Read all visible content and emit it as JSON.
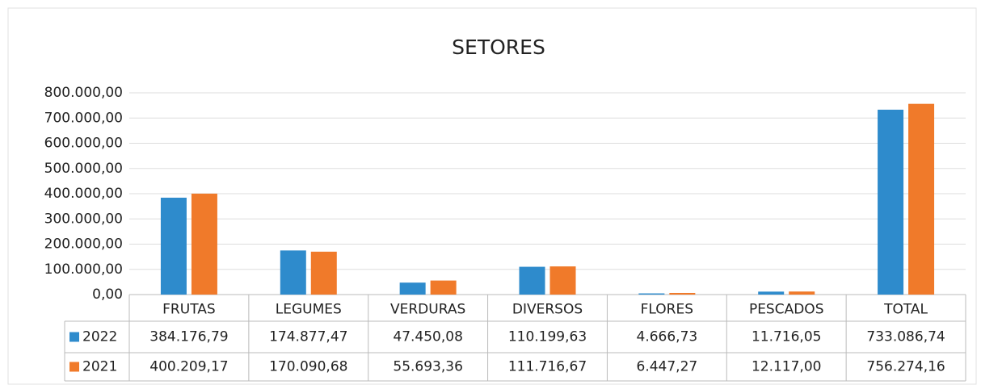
{
  "chart_data": {
    "type": "bar",
    "title": "SETORES",
    "categories": [
      "FRUTAS",
      "LEGUMES",
      "VERDURAS",
      "DIVERSOS",
      "FLORES",
      "PESCADOS",
      "TOTAL"
    ],
    "series": [
      {
        "name": "2022",
        "color": "#2e8bcc",
        "values": [
          384176.79,
          174877.47,
          47450.08,
          110199.63,
          4666.73,
          11716.05,
          733086.74
        ],
        "value_labels": [
          "384.176,79",
          "174.877,47",
          "47.450,08",
          "110.199,63",
          "4.666,73",
          "11.716,05",
          "733.086,74"
        ]
      },
      {
        "name": "2021",
        "color": "#f07a2a",
        "values": [
          400209.17,
          170090.68,
          55693.36,
          111716.67,
          6447.27,
          12117.0,
          756274.16
        ],
        "value_labels": [
          "400.209,17",
          "170.090,68",
          "55.693,36",
          "111.716,67",
          "6.447,27",
          "12.117,00",
          "756.274,16"
        ]
      }
    ],
    "ylim": [
      0,
      800000
    ],
    "yticks": [
      {
        "value": 0,
        "label": "0,00"
      },
      {
        "value": 100000,
        "label": "100.000,00"
      },
      {
        "value": 200000,
        "label": "200.000,00"
      },
      {
        "value": 300000,
        "label": "300.000,00"
      },
      {
        "value": 400000,
        "label": "400.000,00"
      },
      {
        "value": 500000,
        "label": "500.000,00"
      },
      {
        "value": 600000,
        "label": "600.000,00"
      },
      {
        "value": 700000,
        "label": "700.000,00"
      },
      {
        "value": 800000,
        "label": "800.000,00"
      }
    ],
    "grid": true
  }
}
